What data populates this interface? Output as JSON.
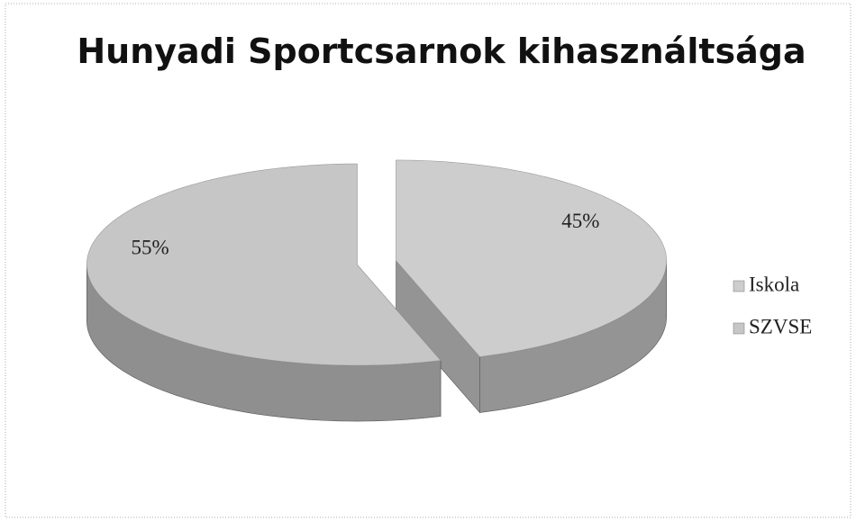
{
  "chart_data": {
    "type": "pie",
    "title": "Hunyadi Sportcsarnok kihasználtsága",
    "categories": [
      "Iskola",
      "SZVSE"
    ],
    "values": [
      45,
      55
    ],
    "value_labels": [
      "45%",
      "55%"
    ],
    "colors": [
      "#cdcdcd",
      "#c6c6c6"
    ],
    "legend": "right"
  }
}
